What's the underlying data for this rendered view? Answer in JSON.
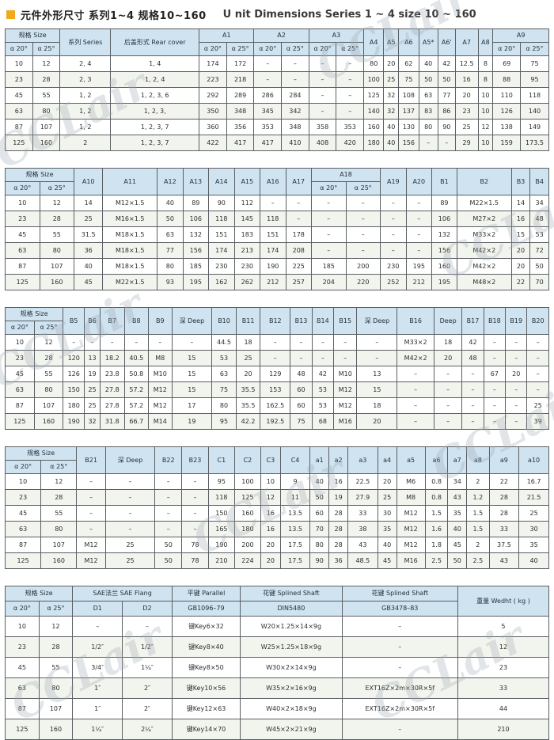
{
  "title": {
    "zh": "元件外形尺寸 系列1~4 规格10~160",
    "en": "U nit Dimensions Series 1 ~ 4 size 10 ~ 160"
  },
  "colors": {
    "accent_orange": "#f0a81c",
    "header_blue": "#cfe3f0",
    "row_stripe": "#f2f4ee",
    "grid_line": "#5a5f63"
  },
  "watermark": {
    "text": "CCLair"
  },
  "tables": [
    {
      "name": "dimension-table-a1-a9",
      "header_rows": [
        [
          {
            "t": "规格 Size",
            "c": 2
          },
          {
            "t": "系列 Series",
            "r": 2
          },
          {
            "t": "后盖形式 Rear cover",
            "r": 2
          },
          {
            "t": "A1",
            "c": 2
          },
          {
            "t": "A2",
            "c": 2
          },
          {
            "t": "A3",
            "c": 2
          },
          {
            "t": "A4",
            "r": 2
          },
          {
            "t": "A5",
            "r": 2
          },
          {
            "t": "A6",
            "r": 2
          },
          {
            "t": "A5*",
            "r": 2
          },
          {
            "t": "A6'",
            "r": 2
          },
          {
            "t": "A7",
            "r": 2
          },
          {
            "t": "A8",
            "r": 2
          },
          {
            "t": "A9",
            "c": 2
          }
        ],
        [
          {
            "t": "α 20°"
          },
          {
            "t": "α 25°"
          },
          {
            "t": "α 20°"
          },
          {
            "t": "α 25°"
          },
          {
            "t": "α 20°"
          },
          {
            "t": "α 25°"
          },
          {
            "t": "α 20°"
          },
          {
            "t": "α 25°"
          },
          {
            "t": "α 20°"
          },
          {
            "t": "α 25°"
          }
        ]
      ],
      "rows": [
        [
          "10",
          "12",
          "2, 4",
          "1, 4",
          "174",
          "172",
          "–",
          "–",
          "–",
          "–",
          "80",
          "20",
          "62",
          "40",
          "42",
          "12.5",
          "8",
          "69",
          "75"
        ],
        [
          "23",
          "28",
          "2, 3",
          "1, 2, 4",
          "223",
          "218",
          "–",
          "–",
          "–",
          "–",
          "100",
          "25",
          "75",
          "50",
          "50",
          "16",
          "8",
          "88",
          "95"
        ],
        [
          "45",
          "55",
          "1, 2",
          "1, 2, 3, 6",
          "292",
          "289",
          "286",
          "284",
          "–",
          "–",
          "125",
          "32",
          "108",
          "63",
          "77",
          "20",
          "10",
          "110",
          "118"
        ],
        [
          "63",
          "80",
          "1, 2",
          "1, 2, 3,",
          "350",
          "348",
          "345",
          "342",
          "–",
          "–",
          "140",
          "32",
          "137",
          "83",
          "86",
          "23",
          "10",
          "126",
          "140"
        ],
        [
          "87",
          "107",
          "1, 2",
          "1, 2, 3, 7",
          "360",
          "356",
          "353",
          "348",
          "358",
          "353",
          "160",
          "40",
          "130",
          "80",
          "90",
          "25",
          "12",
          "138",
          "149"
        ],
        [
          "125",
          "160",
          "2",
          "1, 2, 3, 7",
          "422",
          "417",
          "417",
          "410",
          "408",
          "420",
          "180",
          "40",
          "156",
          "–",
          "–",
          "29",
          "10",
          "159",
          "173.5"
        ]
      ]
    },
    {
      "name": "dimension-table-a10-b4",
      "header_rows": [
        [
          {
            "t": "规格 Size",
            "c": 2
          },
          {
            "t": "A10",
            "r": 2
          },
          {
            "t": "A11",
            "r": 2
          },
          {
            "t": "A12",
            "r": 2
          },
          {
            "t": "A13",
            "r": 2
          },
          {
            "t": "A14",
            "r": 2
          },
          {
            "t": "A15",
            "r": 2
          },
          {
            "t": "A16",
            "r": 2
          },
          {
            "t": "A17",
            "r": 2
          },
          {
            "t": "A18",
            "c": 2
          },
          {
            "t": "A19",
            "r": 2
          },
          {
            "t": "A20",
            "r": 2
          },
          {
            "t": "B1",
            "r": 2
          },
          {
            "t": "B2",
            "r": 2
          },
          {
            "t": "B3",
            "r": 2
          },
          {
            "t": "B4",
            "r": 2
          }
        ],
        [
          {
            "t": "α 20°"
          },
          {
            "t": "α 25°"
          },
          {
            "t": "α 20°"
          },
          {
            "t": "α 25°"
          }
        ]
      ],
      "rows": [
        [
          "10",
          "12",
          "14",
          "M12×1.5",
          "40",
          "89",
          "90",
          "112",
          "–",
          "–",
          "–",
          "–",
          "–",
          "–",
          "89",
          "M22×1.5",
          "14",
          "34"
        ],
        [
          "23",
          "28",
          "25",
          "M16×1.5",
          "50",
          "106",
          "118",
          "145",
          "118",
          "–",
          "–",
          "–",
          "–",
          "–",
          "106",
          "M27×2",
          "16",
          "48"
        ],
        [
          "45",
          "55",
          "31.5",
          "M18×1.5",
          "63",
          "132",
          "151",
          "183",
          "151",
          "178",
          "–",
          "–",
          "–",
          "–",
          "132",
          "M33×2",
          "15",
          "53"
        ],
        [
          "63",
          "80",
          "36",
          "M18×1.5",
          "77",
          "156",
          "174",
          "213",
          "174",
          "208",
          "–",
          "–",
          "–",
          "–",
          "156",
          "M42×2",
          "20",
          "72"
        ],
        [
          "87",
          "107",
          "40",
          "M18×1.5",
          "80",
          "185",
          "230",
          "230",
          "190",
          "225",
          "185",
          "200",
          "230",
          "195",
          "160",
          "M42×2",
          "20",
          "50"
        ],
        [
          "125",
          "160",
          "45",
          "M22×1.5",
          "93",
          "195",
          "162",
          "262",
          "212",
          "257",
          "204",
          "220",
          "252",
          "212",
          "195",
          "M48×2",
          "22",
          "70"
        ]
      ]
    },
    {
      "name": "dimension-table-b5-b20",
      "header_rows": [
        [
          {
            "t": "规格 Size",
            "c": 2
          },
          {
            "t": "B5",
            "r": 2
          },
          {
            "t": "B6",
            "r": 2
          },
          {
            "t": "B7",
            "r": 2
          },
          {
            "t": "B8",
            "r": 2
          },
          {
            "t": "B9",
            "r": 2
          },
          {
            "t": "深 Deep",
            "r": 2
          },
          {
            "t": "B10",
            "r": 2
          },
          {
            "t": "B11",
            "r": 2
          },
          {
            "t": "B12",
            "r": 2
          },
          {
            "t": "B13",
            "r": 2
          },
          {
            "t": "B14",
            "r": 2
          },
          {
            "t": "B15",
            "r": 2
          },
          {
            "t": "深 Deep",
            "r": 2
          },
          {
            "t": "B16",
            "r": 2
          },
          {
            "t": "Deep",
            "r": 2
          },
          {
            "t": "B17",
            "r": 2
          },
          {
            "t": "B18",
            "r": 2
          },
          {
            "t": "B19",
            "r": 2
          },
          {
            "t": "B20",
            "r": 2
          }
        ],
        [
          {
            "t": "α 20°"
          },
          {
            "t": "α 25°"
          }
        ]
      ],
      "rows": [
        [
          "10",
          "12",
          "–",
          "–",
          "–",
          "–",
          "–",
          "–",
          "44.5",
          "18",
          "–",
          "–",
          "–",
          "–",
          "–",
          "M33×2",
          "18",
          "42",
          "–",
          "–",
          "–"
        ],
        [
          "23",
          "28",
          "120",
          "13",
          "18.2",
          "40.5",
          "M8",
          "15",
          "53",
          "25",
          "–",
          "–",
          "–",
          "–",
          "–",
          "M42×2",
          "20",
          "48",
          "–",
          "–",
          "–"
        ],
        [
          "45",
          "55",
          "126",
          "19",
          "23.8",
          "50.8",
          "M10",
          "15",
          "63",
          "20",
          "129",
          "48",
          "42",
          "M10",
          "13",
          "–",
          "–",
          "–",
          "67",
          "20",
          "–"
        ],
        [
          "63",
          "80",
          "150",
          "25",
          "27.8",
          "57.2",
          "M12",
          "15",
          "75",
          "35.5",
          "153",
          "60",
          "53",
          "M12",
          "15",
          "–",
          "–",
          "–",
          "–",
          "–",
          "–"
        ],
        [
          "87",
          "107",
          "180",
          "25",
          "27.8",
          "57.2",
          "M12",
          "17",
          "80",
          "35.5",
          "162.5",
          "60",
          "53",
          "M12",
          "18",
          "–",
          "–",
          "–",
          "–",
          "–",
          "25"
        ],
        [
          "125",
          "160",
          "190",
          "32",
          "31.8",
          "66.7",
          "M14",
          "19",
          "95",
          "42.2",
          "192.5",
          "75",
          "68",
          "M16",
          "20",
          "–",
          "–",
          "–",
          "–",
          "–",
          "39"
        ]
      ]
    },
    {
      "name": "dimension-table-b21-a10",
      "header_rows": [
        [
          {
            "t": "规格 Size",
            "c": 2
          },
          {
            "t": "B21",
            "r": 2
          },
          {
            "t": "深 Deep",
            "r": 2
          },
          {
            "t": "B22",
            "r": 2
          },
          {
            "t": "B23",
            "r": 2
          },
          {
            "t": "C1",
            "r": 2
          },
          {
            "t": "C2",
            "r": 2
          },
          {
            "t": "C3",
            "r": 2
          },
          {
            "t": "C4",
            "r": 2
          },
          {
            "t": "a1",
            "r": 2
          },
          {
            "t": "a2",
            "r": 2
          },
          {
            "t": "a3",
            "r": 2
          },
          {
            "t": "a4",
            "r": 2
          },
          {
            "t": "a5",
            "r": 2
          },
          {
            "t": "a6",
            "r": 2
          },
          {
            "t": "a7",
            "r": 2
          },
          {
            "t": "a8",
            "r": 2
          },
          {
            "t": "a9",
            "r": 2
          },
          {
            "t": "a10",
            "r": 2
          }
        ],
        [
          {
            "t": "α 20°"
          },
          {
            "t": "α 25°"
          }
        ]
      ],
      "rows": [
        [
          "10",
          "12",
          "–",
          "–",
          "–",
          "–",
          "95",
          "100",
          "10",
          "9",
          "40",
          "16",
          "22.5",
          "20",
          "M6",
          "0.8",
          "34",
          "2",
          "22",
          "16.7"
        ],
        [
          "23",
          "28",
          "–",
          "–",
          "–",
          "–",
          "118",
          "125",
          "12",
          "11",
          "50",
          "19",
          "27.9",
          "25",
          "M8",
          "0.8",
          "43",
          "1.2",
          "28",
          "21.5"
        ],
        [
          "45",
          "55",
          "–",
          "–",
          "–",
          "–",
          "150",
          "160",
          "16",
          "13.5",
          "60",
          "28",
          "33",
          "30",
          "M12",
          "1.5",
          "35",
          "1.5",
          "28",
          "25"
        ],
        [
          "63",
          "80",
          "–",
          "–",
          "–",
          "–",
          "165",
          "180",
          "16",
          "13.5",
          "70",
          "28",
          "38",
          "35",
          "M12",
          "1.6",
          "40",
          "1.5",
          "33",
          "30"
        ],
        [
          "87",
          "107",
          "M12",
          "25",
          "50",
          "78",
          "190",
          "200",
          "20",
          "17.5",
          "80",
          "28",
          "43",
          "40",
          "M12",
          "1.8",
          "45",
          "2",
          "37.5",
          "35"
        ],
        [
          "125",
          "160",
          "M12",
          "25",
          "50",
          "78",
          "210",
          "224",
          "20",
          "17.5",
          "90",
          "36",
          "48.5",
          "45",
          "M16",
          "2.5",
          "50",
          "2.5",
          "43",
          "40"
        ]
      ]
    },
    {
      "name": "shaft-key-weight-table",
      "header_rows": [
        [
          {
            "t": "规格 Size",
            "c": 2
          },
          {
            "t": "SAE法兰  SAE Flang",
            "c": 2
          },
          {
            "t": "平键 Parallel"
          },
          {
            "t": "花键 Splined Shaft"
          },
          {
            "t": "花键 Splined Shaft"
          },
          {
            "t": "重量 Wedht ( kg )",
            "r": 2
          }
        ],
        [
          {
            "t": "α 20°"
          },
          {
            "t": "α 25°"
          },
          {
            "t": "D1"
          },
          {
            "t": "D2"
          },
          {
            "t": "GB1096–79"
          },
          {
            "t": "DIN5480"
          },
          {
            "t": "GB3478–83"
          }
        ]
      ],
      "rows": [
        [
          "10",
          "12",
          "–",
          "–",
          "键Key6×32",
          "W20×1.25×14×9g",
          "–",
          "5"
        ],
        [
          "23",
          "28",
          "1/2″",
          "1/2″",
          "键Key8×40",
          "W25×1.25×18×9g",
          "–",
          "12"
        ],
        [
          "45",
          "55",
          "3/4″",
          "1¼″",
          "键Key8×50",
          "W30×2×14×9g",
          "–",
          "23"
        ],
        [
          "63",
          "80",
          "1″",
          "2″",
          "键Key10×56",
          "W35×2×16×9g",
          "EXT16Z×2m×30R×5f",
          "33"
        ],
        [
          "87",
          "107",
          "1″",
          "2″",
          "键Key12×63",
          "W40×2×18×9g",
          "EXT16Z×2m×30R×5f",
          "44"
        ],
        [
          "125",
          "160",
          "1¼″",
          "2¼″",
          "键Key14×70",
          "W45×2×21×9g",
          "–",
          "210"
        ]
      ]
    }
  ]
}
